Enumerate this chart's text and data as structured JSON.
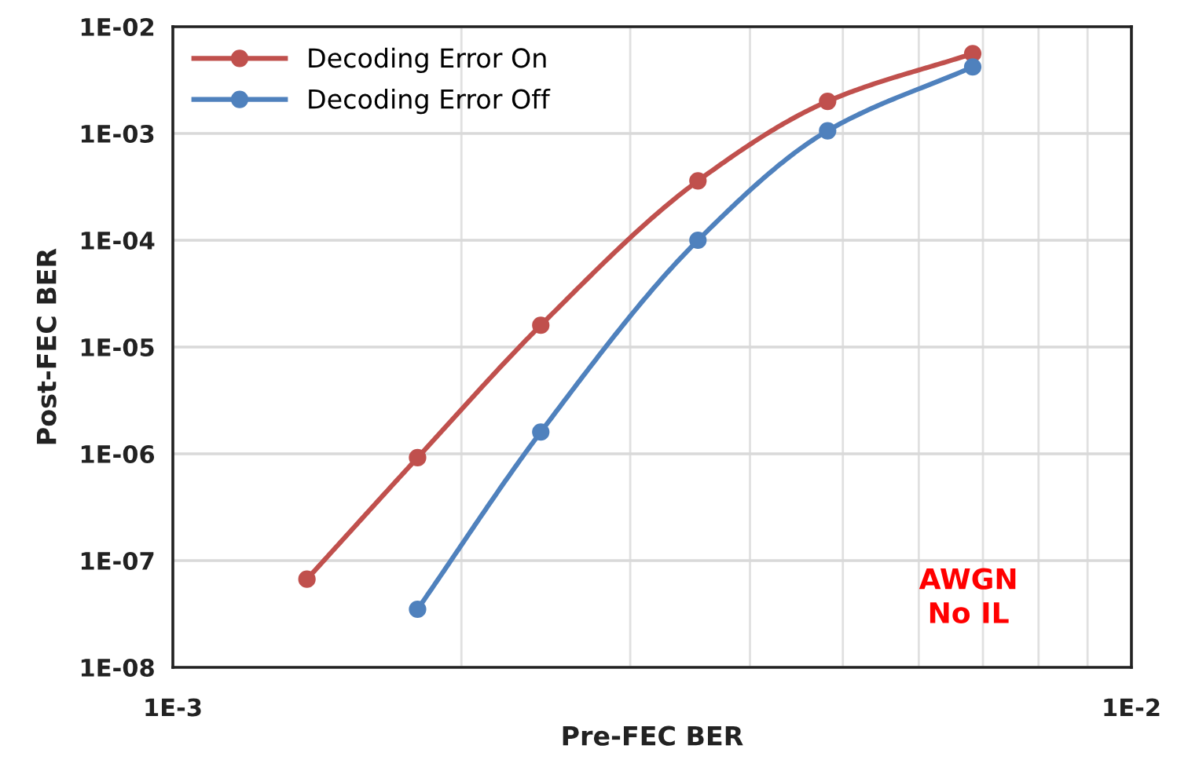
{
  "chart_data": {
    "type": "line",
    "xlabel": "Pre-FEC BER",
    "ylabel": "Post-FEC BER",
    "log": "xy",
    "grid": true,
    "legend": "top left",
    "marker": "circle",
    "line_style": "solid",
    "xlim": [
      0.001,
      0.01
    ],
    "ylim": [
      1e-08,
      0.01
    ],
    "xticks": [
      {
        "value": 0.001,
        "label": "1E-3"
      },
      {
        "value": 0.002,
        "label": null
      },
      {
        "value": 0.003,
        "label": null
      },
      {
        "value": 0.004,
        "label": null
      },
      {
        "value": 0.005,
        "label": null
      },
      {
        "value": 0.006,
        "label": null
      },
      {
        "value": 0.007,
        "label": null
      },
      {
        "value": 0.008,
        "label": null
      },
      {
        "value": 0.009,
        "label": null
      },
      {
        "value": 0.01,
        "label": "1E-2"
      }
    ],
    "yticks": [
      {
        "value": 1e-08,
        "label": "1E-08"
      },
      {
        "value": 1e-07,
        "label": "1E-07"
      },
      {
        "value": 1e-06,
        "label": "1E-06"
      },
      {
        "value": 1e-05,
        "label": "1E-05"
      },
      {
        "value": 0.0001,
        "label": "1E-04"
      },
      {
        "value": 0.001,
        "label": "1E-03"
      },
      {
        "value": 0.01,
        "label": "1E-02"
      }
    ],
    "series": [
      {
        "name": "Decoding Error On",
        "color": "#c0504d",
        "x": [
          0.00138,
          0.0018,
          0.00242,
          0.00353,
          0.00482,
          0.00683
        ],
        "values": [
          6.7e-08,
          9.2e-07,
          1.6e-05,
          0.00036,
          0.002,
          0.0056
        ]
      },
      {
        "name": "Decoding Error Off",
        "color": "#4f81bd",
        "x": [
          0.0018,
          0.00242,
          0.00353,
          0.00482,
          0.00683
        ],
        "values": [
          3.5e-08,
          1.6e-06,
          0.0001,
          0.00106,
          0.0042
        ]
      }
    ],
    "annotations": [
      "AWGN\nNo IL"
    ]
  }
}
